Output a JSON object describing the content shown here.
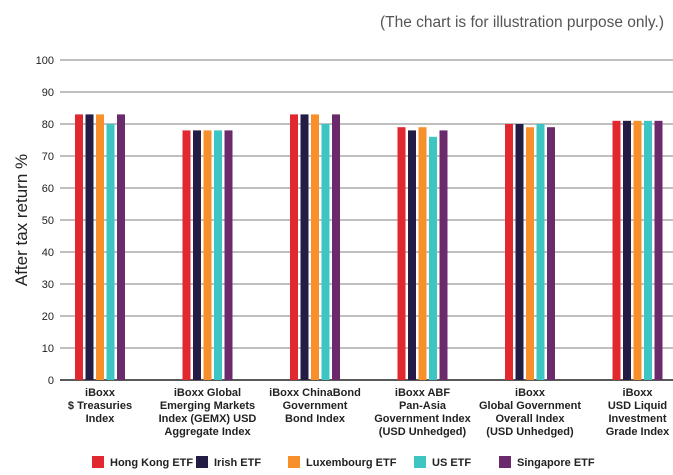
{
  "chart_data": {
    "type": "bar",
    "title": "",
    "annotation": "(The chart is for illustration purpose only.)",
    "xlabel": "",
    "ylabel": "After tax return %",
    "ylim": [
      0,
      100
    ],
    "yticks": [
      0,
      10,
      20,
      30,
      40,
      50,
      60,
      70,
      80,
      90,
      100
    ],
    "ytick_labels": [
      "0",
      "10",
      "20",
      "30",
      "40",
      "50",
      "60",
      "70",
      "80",
      "90",
      "100"
    ],
    "grid": true,
    "legend_position": "bottom",
    "categories": [
      [
        "iBoxx",
        "$ Treasuries",
        "Index"
      ],
      [
        "iBoxx Global",
        "Emerging Markets",
        "Index (GEMX) USD",
        "Aggregate Index"
      ],
      [
        "iBoxx ChinaBond",
        "Government",
        "Bond Index"
      ],
      [
        "iBoxx ABF",
        "Pan-Asia",
        "Government Index",
        "(USD Unhedged)"
      ],
      [
        "iBoxx",
        "Global Government",
        "Overall Index",
        "(USD Unhedged)"
      ],
      [
        "iBoxx",
        "USD Liquid",
        "Investment",
        "Grade Index"
      ]
    ],
    "series": [
      {
        "name": "Hong Kong ETF",
        "color": "#e0282e",
        "values": [
          83,
          78,
          83,
          79,
          80,
          81
        ]
      },
      {
        "name": "Irish ETF",
        "color": "#231c45",
        "values": [
          83,
          78,
          83,
          78,
          80,
          81
        ]
      },
      {
        "name": "Luxembourg ETF",
        "color": "#f7902a",
        "values": [
          83,
          78,
          83,
          79,
          79,
          81
        ]
      },
      {
        "name": "US ETF",
        "color": "#3cc5c2",
        "values": [
          80,
          78,
          80,
          76,
          80,
          81
        ]
      },
      {
        "name": "Singapore ETF",
        "color": "#6b2a6b",
        "values": [
          83,
          78,
          83,
          78,
          79,
          81
        ]
      }
    ]
  }
}
